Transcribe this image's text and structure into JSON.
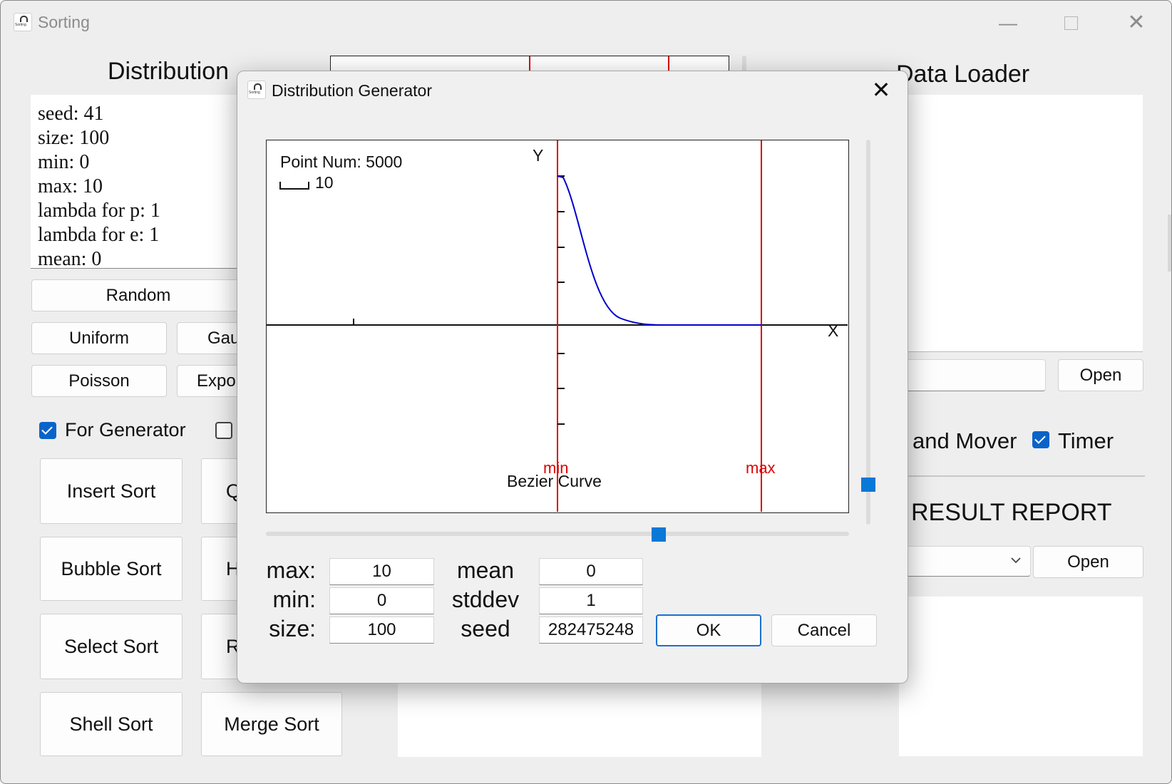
{
  "window": {
    "title": "Sorting"
  },
  "distribution_panel": {
    "heading": "Distribution",
    "info_lines": [
      "seed: 41",
      "size: 100",
      "min: 0",
      "max: 10",
      "lambda for p: 1",
      "lambda for e: 1",
      "mean: 0"
    ],
    "random_button": "Random",
    "uniform_button": "Uniform",
    "gaussian_button_visible": "Gau",
    "poisson_button": "Poisson",
    "exponential_button_visible": "Expo",
    "for_generator_label": "For Generator",
    "for_generator_checked": true,
    "second_checkbox_checked": false
  },
  "sort_buttons": {
    "insert": "Insert Sort",
    "quick_visible": "Q",
    "bubble": "Bubble Sort",
    "heap_visible": "H",
    "select": "Select Sort",
    "radix_visible": "R",
    "shell": "Shell Sort",
    "merge": "Merge Sort"
  },
  "data_loader": {
    "heading": "Data Loader",
    "open_button": "Open",
    "mover_label": "and Mover",
    "timer_label": "Timer",
    "timer_checked": true
  },
  "result_report": {
    "heading": "RESULT REPORT",
    "open_button": "Open",
    "dropdown_icon": "chevron-down-icon"
  },
  "dialog": {
    "title": "Distribution Generator",
    "close_icon": "close-icon",
    "chart": {
      "point_num_label": "Point Num: 5000",
      "scale_label": "10",
      "axis_x_label": "X",
      "axis_y_label": "Y",
      "min_marker": "min",
      "max_marker": "max",
      "curve_label": "Bezier Curve",
      "curve_color": "#0000cc",
      "marker_color": "#dd0000"
    },
    "horizontal_slider_value": 0.69,
    "vertical_slider_value": 0.17,
    "fields": {
      "max_label": "max:",
      "max_value": "10",
      "min_label": "min:",
      "min_value": "0",
      "size_label": "size:",
      "size_value": "100",
      "mean_label": "mean",
      "mean_value": "0",
      "stddev_label": "stddev",
      "stddev_value": "1",
      "seed_label": "seed",
      "seed_value": "282475248"
    },
    "ok_button": "OK",
    "cancel_button": "Cancel",
    "accent_color": "#0a78d7"
  }
}
